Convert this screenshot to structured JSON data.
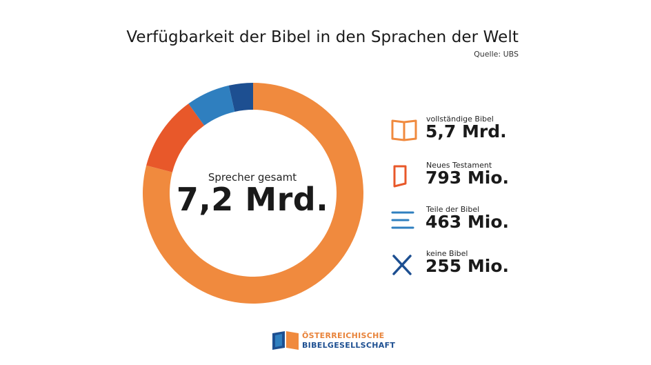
{
  "header": {
    "title": "Verfügbarkeit der Bibel in den Sprachen der Welt",
    "source": "Quelle: UBS"
  },
  "center": {
    "label": "Sprecher gesamt",
    "value": "7,2 Mrd."
  },
  "legend": [
    {
      "label": "vollständige Bibel",
      "value": "5,7 Mrd.",
      "icon": "open-book-icon",
      "color": "#f08a3e"
    },
    {
      "label": "Neues Testament",
      "value": "793 Mio.",
      "icon": "book-icon",
      "color": "#e8582a"
    },
    {
      "label": "Teile der Bibel",
      "value": "463 Mio.",
      "icon": "lines-icon",
      "color": "#2f7fbf"
    },
    {
      "label": "keine Bibel",
      "value": "255 Mio.",
      "icon": "cross-icon",
      "color": "#1d4f91"
    }
  ],
  "logo": {
    "line1": "ÖSTERREICHISCHE",
    "line2": "BIBELGESELLSCHAFT"
  },
  "chart_data": {
    "type": "pie",
    "variant": "donut",
    "title": "Verfügbarkeit der Bibel in den Sprachen der Welt",
    "total": 7.2,
    "total_label": "7,2 Mrd.",
    "unit": "Mrd.",
    "categories": [
      "vollständige Bibel",
      "Neues Testament",
      "Teile der Bibel",
      "keine Bibel"
    ],
    "values": [
      5.7,
      0.793,
      0.463,
      0.255
    ],
    "colors": [
      "#f08a3e",
      "#e8582a",
      "#2f7fbf",
      "#1d4f91"
    ],
    "legend_position": "right"
  }
}
